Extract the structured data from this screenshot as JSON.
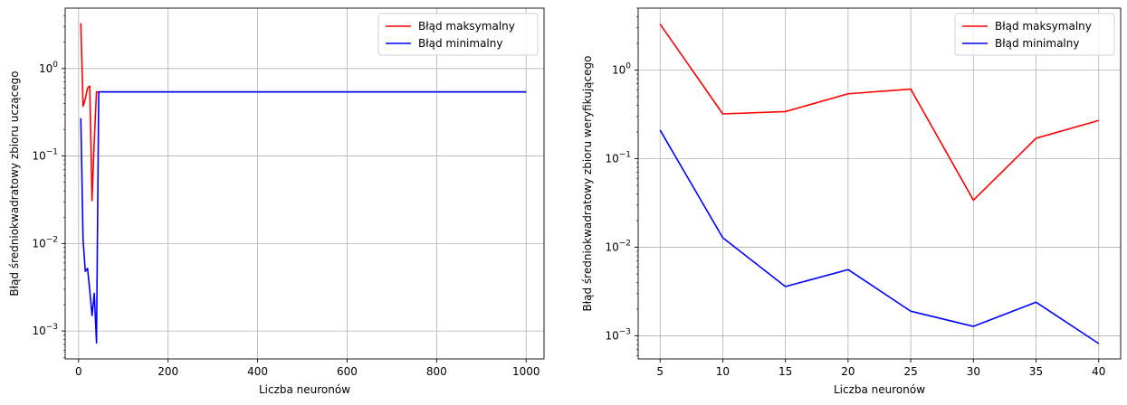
{
  "chart_data": [
    {
      "type": "line",
      "xlabel": "Liczba neuronów",
      "ylabel": "Błąd średniokwadratowy zbioru uczącego",
      "yscale": "log",
      "xlim": [
        -30,
        1040
      ],
      "ylim": [
        0.00048,
        4.9
      ],
      "xticks": [
        0,
        200,
        400,
        600,
        800,
        1000
      ],
      "yticks": [
        0.001,
        0.01,
        0.1,
        1
      ],
      "ytick_labels": [
        "10",
        "10",
        "10",
        "10"
      ],
      "ytick_exponents": [
        "−3",
        "−2",
        "−1",
        "0"
      ],
      "grid": true,
      "legend_position": "top-right",
      "series": [
        {
          "name": "Błąd maksymalny",
          "color": "#ff0000",
          "x": [
            5,
            10,
            15,
            20,
            25,
            30,
            35,
            40,
            45,
            50,
            100,
            200,
            300,
            400,
            500,
            600,
            700,
            800,
            900,
            1000
          ],
          "y": [
            3.3,
            0.37,
            0.45,
            0.6,
            0.63,
            0.031,
            0.15,
            0.54,
            0.54,
            0.54,
            0.54,
            0.54,
            0.54,
            0.54,
            0.54,
            0.54,
            0.54,
            0.54,
            0.54,
            0.54
          ]
        },
        {
          "name": "Błąd minimalny",
          "color": "#0000ff",
          "x": [
            5,
            10,
            15,
            20,
            25,
            30,
            35,
            40,
            45,
            50,
            100,
            200,
            300,
            400,
            500,
            600,
            700,
            800,
            900,
            1000
          ],
          "y": [
            0.27,
            0.011,
            0.0048,
            0.0052,
            0.0029,
            0.0015,
            0.0027,
            0.00073,
            0.54,
            0.54,
            0.54,
            0.54,
            0.54,
            0.54,
            0.54,
            0.54,
            0.54,
            0.54,
            0.54,
            0.54
          ]
        }
      ]
    },
    {
      "type": "line",
      "xlabel": "Liczba neuronów",
      "ylabel": "Błąd średniokwadratowy zbioru weryfikującego",
      "yscale": "log",
      "xlim": [
        3.25,
        41.75
      ],
      "ylim": [
        0.00055,
        5.0
      ],
      "xticks": [
        5,
        10,
        15,
        20,
        25,
        30,
        35,
        40
      ],
      "yticks": [
        0.001,
        0.01,
        0.1,
        1
      ],
      "ytick_labels": [
        "10",
        "10",
        "10",
        "10"
      ],
      "ytick_exponents": [
        "−3",
        "−2",
        "−1",
        "0"
      ],
      "grid": true,
      "legend_position": "top-right",
      "series": [
        {
          "name": "Błąd maksymalny",
          "color": "#ff0000",
          "x": [
            5,
            10,
            15,
            20,
            25,
            30,
            35,
            40
          ],
          "y": [
            3.3,
            0.32,
            0.34,
            0.54,
            0.61,
            0.034,
            0.17,
            0.27
          ]
        },
        {
          "name": "Błąd minimalny",
          "color": "#0000ff",
          "x": [
            5,
            10,
            15,
            20,
            25,
            30,
            35,
            40
          ],
          "y": [
            0.21,
            0.0128,
            0.0036,
            0.0056,
            0.0019,
            0.00128,
            0.0024,
            0.00082
          ]
        }
      ]
    }
  ]
}
